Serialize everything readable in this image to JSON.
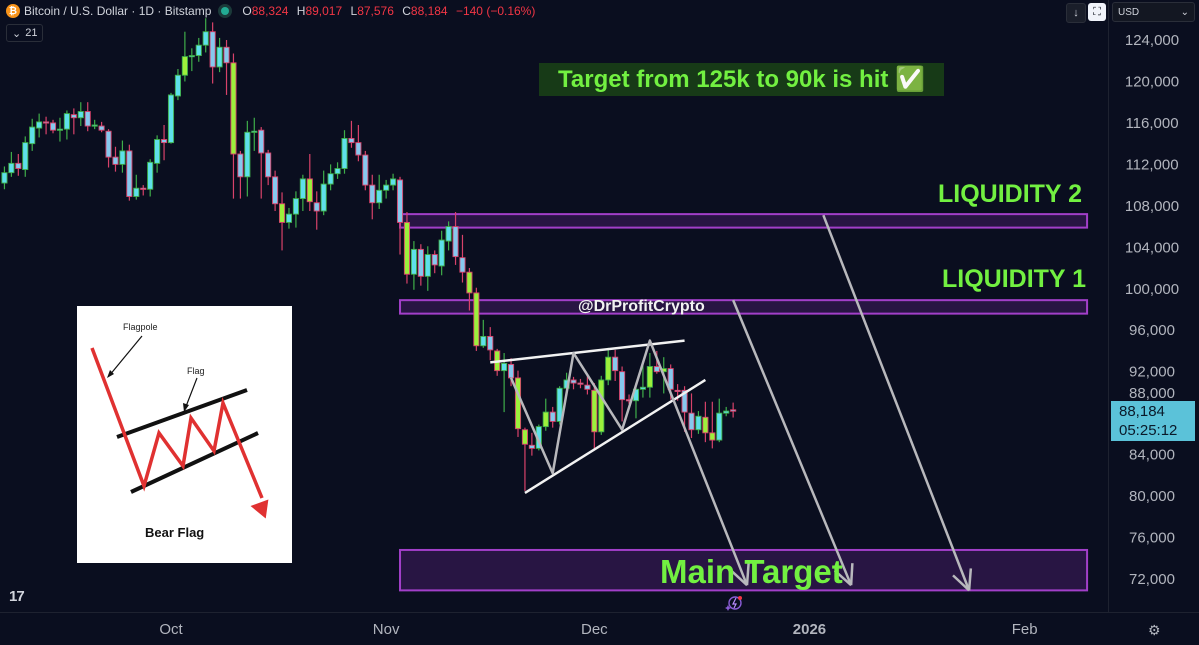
{
  "header": {
    "symbol": "Bitcoin / U.S. Dollar · 1D · Bitstamp",
    "o_label": "O",
    "o": "88,324",
    "h_label": "H",
    "h": "89,017",
    "l_label": "L",
    "l": "87,576",
    "c_label": "C",
    "c": "88,184",
    "change": "−140 (−0.16%)",
    "indicator_count": "21",
    "currency": "USD"
  },
  "price_badge": {
    "price": "88,184",
    "countdown": "05:25:12"
  },
  "annotations": {
    "banner": "Target from 125k to 90k is hit ✅",
    "liquidity2": "LIQUIDITY 2",
    "liquidity1": "LIQUIDITY 1",
    "main_target": "Main Target",
    "watermark": "@DrProfitCrypto"
  },
  "inset": {
    "flagpole": "Flagpole",
    "flag": "Flag",
    "title": "Bear Flag"
  },
  "colors": {
    "background": "#0a0e1f",
    "up_fill": "#5ee0ea",
    "up_border": "#3fae4a",
    "down_fill": "#86c9ee",
    "down_border": "#d8426a",
    "lime_fill": "#9cf03c",
    "zone": "#a23fc9",
    "label_green": "#72f041",
    "price_badge": "#5bc2d9"
  },
  "chart_data": {
    "type": "candlestick",
    "title": "Bitcoin / U.S. Dollar · 1D · Bitstamp",
    "first_date": "2025-09-07",
    "interval": "1D",
    "ylim": [
      69000,
      128000
    ],
    "y_ticks": [
      124000,
      120000,
      116000,
      112000,
      108000,
      104000,
      100000,
      96000,
      92000,
      88000,
      84000,
      80000,
      76000,
      72000
    ],
    "y_tick_labels": [
      "124,000",
      "120,000",
      "116,000",
      "112,000",
      "108,000",
      "104,000",
      "100,000",
      "96,000",
      "92,000",
      "88,000",
      "84,000",
      "80,000",
      "76,000",
      "72,000"
    ],
    "x_ticks": [
      {
        "date": "2025-10-01",
        "label": "Oct"
      },
      {
        "date": "2025-11-01",
        "label": "Nov"
      },
      {
        "date": "2025-12-01",
        "label": "Dec"
      },
      {
        "date": "2026-01-01",
        "label": "2026"
      },
      {
        "date": "2026-02-01",
        "label": "Feb"
      }
    ],
    "candle_fields": [
      "open",
      "high",
      "low",
      "close",
      "lime"
    ],
    "candles": [
      [
        110200,
        111800,
        109600,
        111200,
        0
      ],
      [
        111200,
        113200,
        110800,
        112100,
        0
      ],
      [
        112100,
        113000,
        110900,
        111600,
        0
      ],
      [
        111500,
        114700,
        110800,
        114100,
        0
      ],
      [
        114000,
        116400,
        113300,
        115600,
        0
      ],
      [
        115500,
        116900,
        114600,
        116100,
        0
      ],
      [
        116100,
        116600,
        114900,
        116000,
        0
      ],
      [
        116000,
        116300,
        115000,
        115300,
        0
      ],
      [
        115300,
        116500,
        114200,
        115400,
        0
      ],
      [
        115400,
        117200,
        114400,
        116900,
        0
      ],
      [
        116800,
        117400,
        114900,
        116500,
        0
      ],
      [
        116500,
        118000,
        115700,
        117100,
        0
      ],
      [
        117100,
        118000,
        115200,
        115700,
        0
      ],
      [
        115700,
        116300,
        115400,
        115800,
        0
      ],
      [
        115700,
        116100,
        115100,
        115300,
        0
      ],
      [
        115200,
        115400,
        111700,
        112700,
        0
      ],
      [
        112700,
        113700,
        111300,
        112000,
        0
      ],
      [
        112000,
        114300,
        111200,
        113300,
        0
      ],
      [
        113300,
        113900,
        108500,
        108900,
        0
      ],
      [
        108900,
        111000,
        108600,
        109700,
        0
      ],
      [
        109700,
        110000,
        109000,
        109600,
        0
      ],
      [
        109600,
        112500,
        108900,
        112200,
        0
      ],
      [
        112100,
        114800,
        111200,
        114400,
        0
      ],
      [
        114400,
        115800,
        112400,
        114100,
        0
      ],
      [
        114100,
        118900,
        114000,
        118700,
        0
      ],
      [
        118600,
        121200,
        118200,
        120600,
        0
      ],
      [
        120600,
        124800,
        120000,
        122400,
        1
      ],
      [
        122400,
        123200,
        121000,
        122500,
        0
      ],
      [
        122500,
        124200,
        121900,
        123500,
        0
      ],
      [
        123500,
        126100,
        122800,
        124800,
        0
      ],
      [
        124800,
        125700,
        119800,
        121400,
        0
      ],
      [
        121400,
        124200,
        120900,
        123300,
        0
      ],
      [
        123300,
        124000,
        118700,
        121800,
        0
      ],
      [
        121800,
        122700,
        108700,
        113000,
        1
      ],
      [
        113000,
        113300,
        108700,
        110800,
        0
      ],
      [
        110800,
        116200,
        108900,
        115100,
        0
      ],
      [
        115100,
        116500,
        113300,
        115200,
        0
      ],
      [
        115300,
        115600,
        108700,
        113100,
        0
      ],
      [
        113100,
        113400,
        110000,
        110800,
        0
      ],
      [
        110800,
        111400,
        107500,
        108200,
        0
      ],
      [
        108200,
        109300,
        103700,
        106400,
        1
      ],
      [
        106400,
        107800,
        105800,
        107200,
        0
      ],
      [
        107200,
        109400,
        105900,
        108700,
        0
      ],
      [
        108700,
        111000,
        107500,
        110600,
        0
      ],
      [
        110600,
        113000,
        107500,
        108400,
        1
      ],
      [
        108300,
        109400,
        105700,
        107500,
        0
      ],
      [
        107500,
        111400,
        107100,
        110100,
        0
      ],
      [
        110100,
        112000,
        109500,
        111100,
        0
      ],
      [
        111100,
        112200,
        110600,
        111600,
        0
      ],
      [
        111600,
        115300,
        111100,
        114500,
        0
      ],
      [
        114500,
        116200,
        113600,
        114100,
        0
      ],
      [
        114100,
        115800,
        112300,
        112900,
        0
      ],
      [
        112900,
        113300,
        109500,
        110000,
        0
      ],
      [
        110000,
        111000,
        106700,
        108300,
        0
      ],
      [
        108300,
        111000,
        107700,
        109500,
        0
      ],
      [
        109500,
        110500,
        108700,
        110000,
        0
      ],
      [
        110000,
        111100,
        109500,
        110600,
        0
      ],
      [
        110500,
        110800,
        103300,
        106400,
        0
      ],
      [
        106400,
        107400,
        100500,
        101400,
        1
      ],
      [
        101400,
        104600,
        99900,
        103800,
        0
      ],
      [
        103800,
        104300,
        100300,
        101200,
        0
      ],
      [
        101200,
        104100,
        99800,
        103300,
        0
      ],
      [
        103300,
        103700,
        101500,
        102300,
        0
      ],
      [
        102200,
        105600,
        101300,
        104700,
        0
      ],
      [
        104600,
        106500,
        103700,
        106000,
        0
      ],
      [
        106000,
        107400,
        102300,
        103100,
        0
      ],
      [
        103000,
        105200,
        100600,
        101600,
        0
      ],
      [
        101600,
        102000,
        97900,
        99600,
        1
      ],
      [
        99600,
        100100,
        94000,
        94500,
        1
      ],
      [
        94500,
        97000,
        94300,
        95400,
        0
      ],
      [
        95400,
        96300,
        93100,
        94100,
        0
      ],
      [
        94000,
        94200,
        91600,
        92100,
        1
      ],
      [
        92100,
        93800,
        88100,
        92800,
        0
      ],
      [
        92700,
        93300,
        90600,
        91400,
        0
      ],
      [
        91400,
        92100,
        85700,
        86500,
        1
      ],
      [
        86400,
        86600,
        80500,
        85000,
        1
      ],
      [
        84900,
        86100,
        83900,
        84600,
        0
      ],
      [
        84600,
        86900,
        84400,
        86700,
        0
      ],
      [
        86700,
        89400,
        86300,
        88100,
        1
      ],
      [
        88100,
        88600,
        86600,
        87200,
        0
      ],
      [
        87200,
        90600,
        86900,
        90400,
        0
      ],
      [
        90400,
        91900,
        89700,
        91200,
        0
      ],
      [
        91200,
        91500,
        90300,
        90900,
        0
      ],
      [
        90900,
        91300,
        90400,
        90800,
        0
      ],
      [
        90700,
        91700,
        89800,
        90300,
        0
      ],
      [
        90200,
        90900,
        84500,
        86200,
        1
      ],
      [
        86200,
        91600,
        85900,
        91200,
        1
      ],
      [
        91200,
        94300,
        90700,
        93400,
        1
      ],
      [
        93400,
        94100,
        91100,
        92100,
        0
      ],
      [
        92000,
        92500,
        87200,
        89300,
        0
      ],
      [
        89300,
        89800,
        88900,
        89200,
        0
      ],
      [
        89200,
        90900,
        87500,
        90300,
        0
      ],
      [
        90300,
        92800,
        89500,
        90500,
        0
      ],
      [
        90500,
        93800,
        89500,
        92500,
        1
      ],
      [
        92500,
        94000,
        91800,
        92000,
        0
      ],
      [
        92000,
        93400,
        89900,
        92300,
        1
      ],
      [
        92300,
        92700,
        89300,
        90300,
        0
      ],
      [
        90200,
        90800,
        89200,
        90100,
        0
      ],
      [
        90200,
        90600,
        86200,
        88100,
        0
      ],
      [
        88000,
        89900,
        85600,
        86400,
        0
      ],
      [
        86400,
        88200,
        86000,
        87700,
        0
      ],
      [
        87600,
        89100,
        85200,
        86100,
        1
      ],
      [
        86100,
        89100,
        84600,
        85400,
        1
      ],
      [
        85400,
        89400,
        85200,
        88000,
        0
      ],
      [
        88000,
        88600,
        87700,
        88200,
        0
      ],
      [
        88324,
        89017,
        87576,
        88184,
        0
      ]
    ],
    "zones": [
      {
        "name": "LIQUIDITY 2",
        "from": "2025-11-03",
        "to": "2026-02-10",
        "top": 107200,
        "bottom": 105900
      },
      {
        "name": "LIQUIDITY 1",
        "from": "2025-11-03",
        "to": "2026-02-10",
        "top": 98900,
        "bottom": 97600
      },
      {
        "name": "Main Target",
        "from": "2025-11-03",
        "to": "2026-02-10",
        "top": 74800,
        "bottom": 70900
      }
    ],
    "trendlines": [
      {
        "color": "#f2f2f2",
        "points": [
          [
            "2025-11-16",
            92900
          ],
          [
            "2025-12-14",
            95000
          ]
        ]
      },
      {
        "color": "#f2f2f2",
        "points": [
          [
            "2025-11-21",
            80300
          ],
          [
            "2025-12-17",
            91200
          ]
        ]
      }
    ],
    "paths": [
      {
        "color": "#b8b8bc",
        "arrow": true,
        "points": [
          [
            "2025-11-19",
            91400
          ],
          [
            "2025-11-25",
            82200
          ],
          [
            "2025-11-28",
            93800
          ],
          [
            "2025-12-05",
            86400
          ],
          [
            "2025-12-09",
            95000
          ],
          [
            "2025-12-23",
            71400
          ]
        ]
      },
      {
        "color": "#b8b8bc",
        "arrow": true,
        "points": [
          [
            "2025-12-21",
            98900
          ],
          [
            "2026-01-07",
            71400
          ]
        ]
      },
      {
        "color": "#b8b8bc",
        "arrow": true,
        "points": [
          [
            "2026-01-03",
            107100
          ],
          [
            "2026-01-24",
            70900
          ]
        ]
      }
    ]
  }
}
